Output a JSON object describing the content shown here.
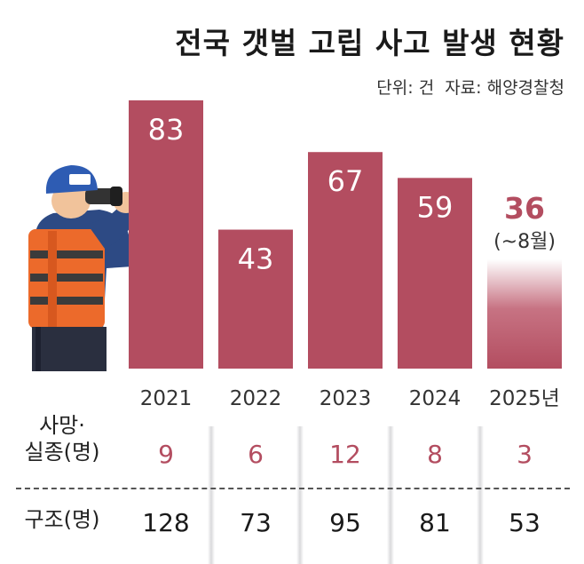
{
  "title": "전국 갯벌 고립 사고 발생 현황",
  "unit_label": "단위: 건",
  "source_label": "자료: 해양경찰청",
  "colors": {
    "bar": "#b34d60",
    "highlight_text": "#b34d60",
    "fade_bar_end": "#ffffff"
  },
  "chart_data": {
    "type": "bar",
    "title": "전국 갯벌 고립 사고 발생 현황",
    "categories": [
      "2021",
      "2022",
      "2023",
      "2024",
      "2025년"
    ],
    "values": [
      83,
      43,
      67,
      59,
      36
    ],
    "value_labels": [
      "83",
      "43",
      "67",
      "59",
      "36"
    ],
    "partial_note": "(~8월)",
    "highlight_index": 4,
    "ylim": [
      0,
      83
    ],
    "legend": "none",
    "grid": false
  },
  "table": {
    "death_label_line1": "사망·",
    "death_label_line2": "실종(명)",
    "rescue_label": "구조(명)",
    "deaths": [
      "9",
      "6",
      "12",
      "8",
      "3"
    ],
    "rescues": [
      "128",
      "73",
      "95",
      "81",
      "53"
    ]
  },
  "illustration": {
    "icon": "coast-guard-binoculars-icon"
  }
}
